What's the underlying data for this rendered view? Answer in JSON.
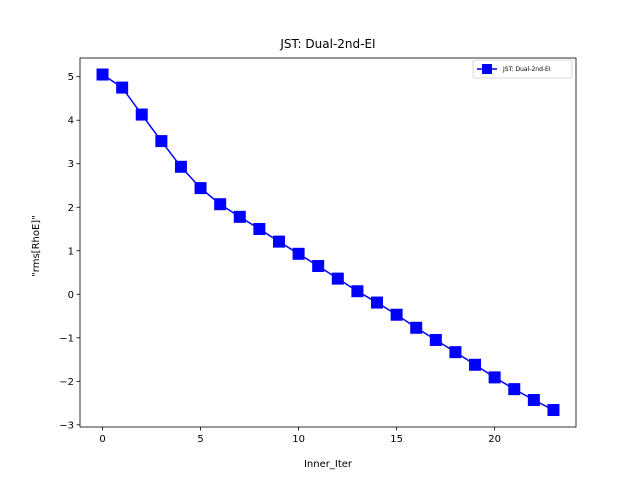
{
  "chart_data": {
    "type": "line",
    "title": "JST: Dual-2nd-EI",
    "xlabel": "Inner_Iter",
    "ylabel": "\"rms[RhoE]\"",
    "xlim": [
      -1.15,
      24.15
    ],
    "ylim": [
      -3.05,
      5.43
    ],
    "xticks": [
      0,
      5,
      10,
      15,
      20
    ],
    "yticks": [
      -3,
      -2,
      -1,
      0,
      1,
      2,
      3,
      4,
      5
    ],
    "xtick_labels": [
      "0",
      "5",
      "10",
      "15",
      "20"
    ],
    "ytick_labels": [
      "−3",
      "−2",
      "−1",
      "0",
      "1",
      "2",
      "3",
      "4",
      "5"
    ],
    "grid": false,
    "legend_position": "top-right",
    "series": [
      {
        "name": "JST: Dual-2nd-EI",
        "color": "#0000ff",
        "marker": "square",
        "x": [
          0,
          1,
          2,
          3,
          4,
          5,
          6,
          7,
          8,
          9,
          10,
          11,
          12,
          13,
          14,
          15,
          16,
          17,
          18,
          19,
          20,
          21,
          22,
          23
        ],
        "y": [
          5.05,
          4.75,
          4.13,
          3.52,
          2.93,
          2.44,
          2.07,
          1.78,
          1.5,
          1.21,
          0.93,
          0.65,
          0.36,
          0.07,
          -0.19,
          -0.47,
          -0.77,
          -1.05,
          -1.33,
          -1.62,
          -1.91,
          -2.18,
          -2.43,
          -2.66
        ]
      }
    ]
  }
}
